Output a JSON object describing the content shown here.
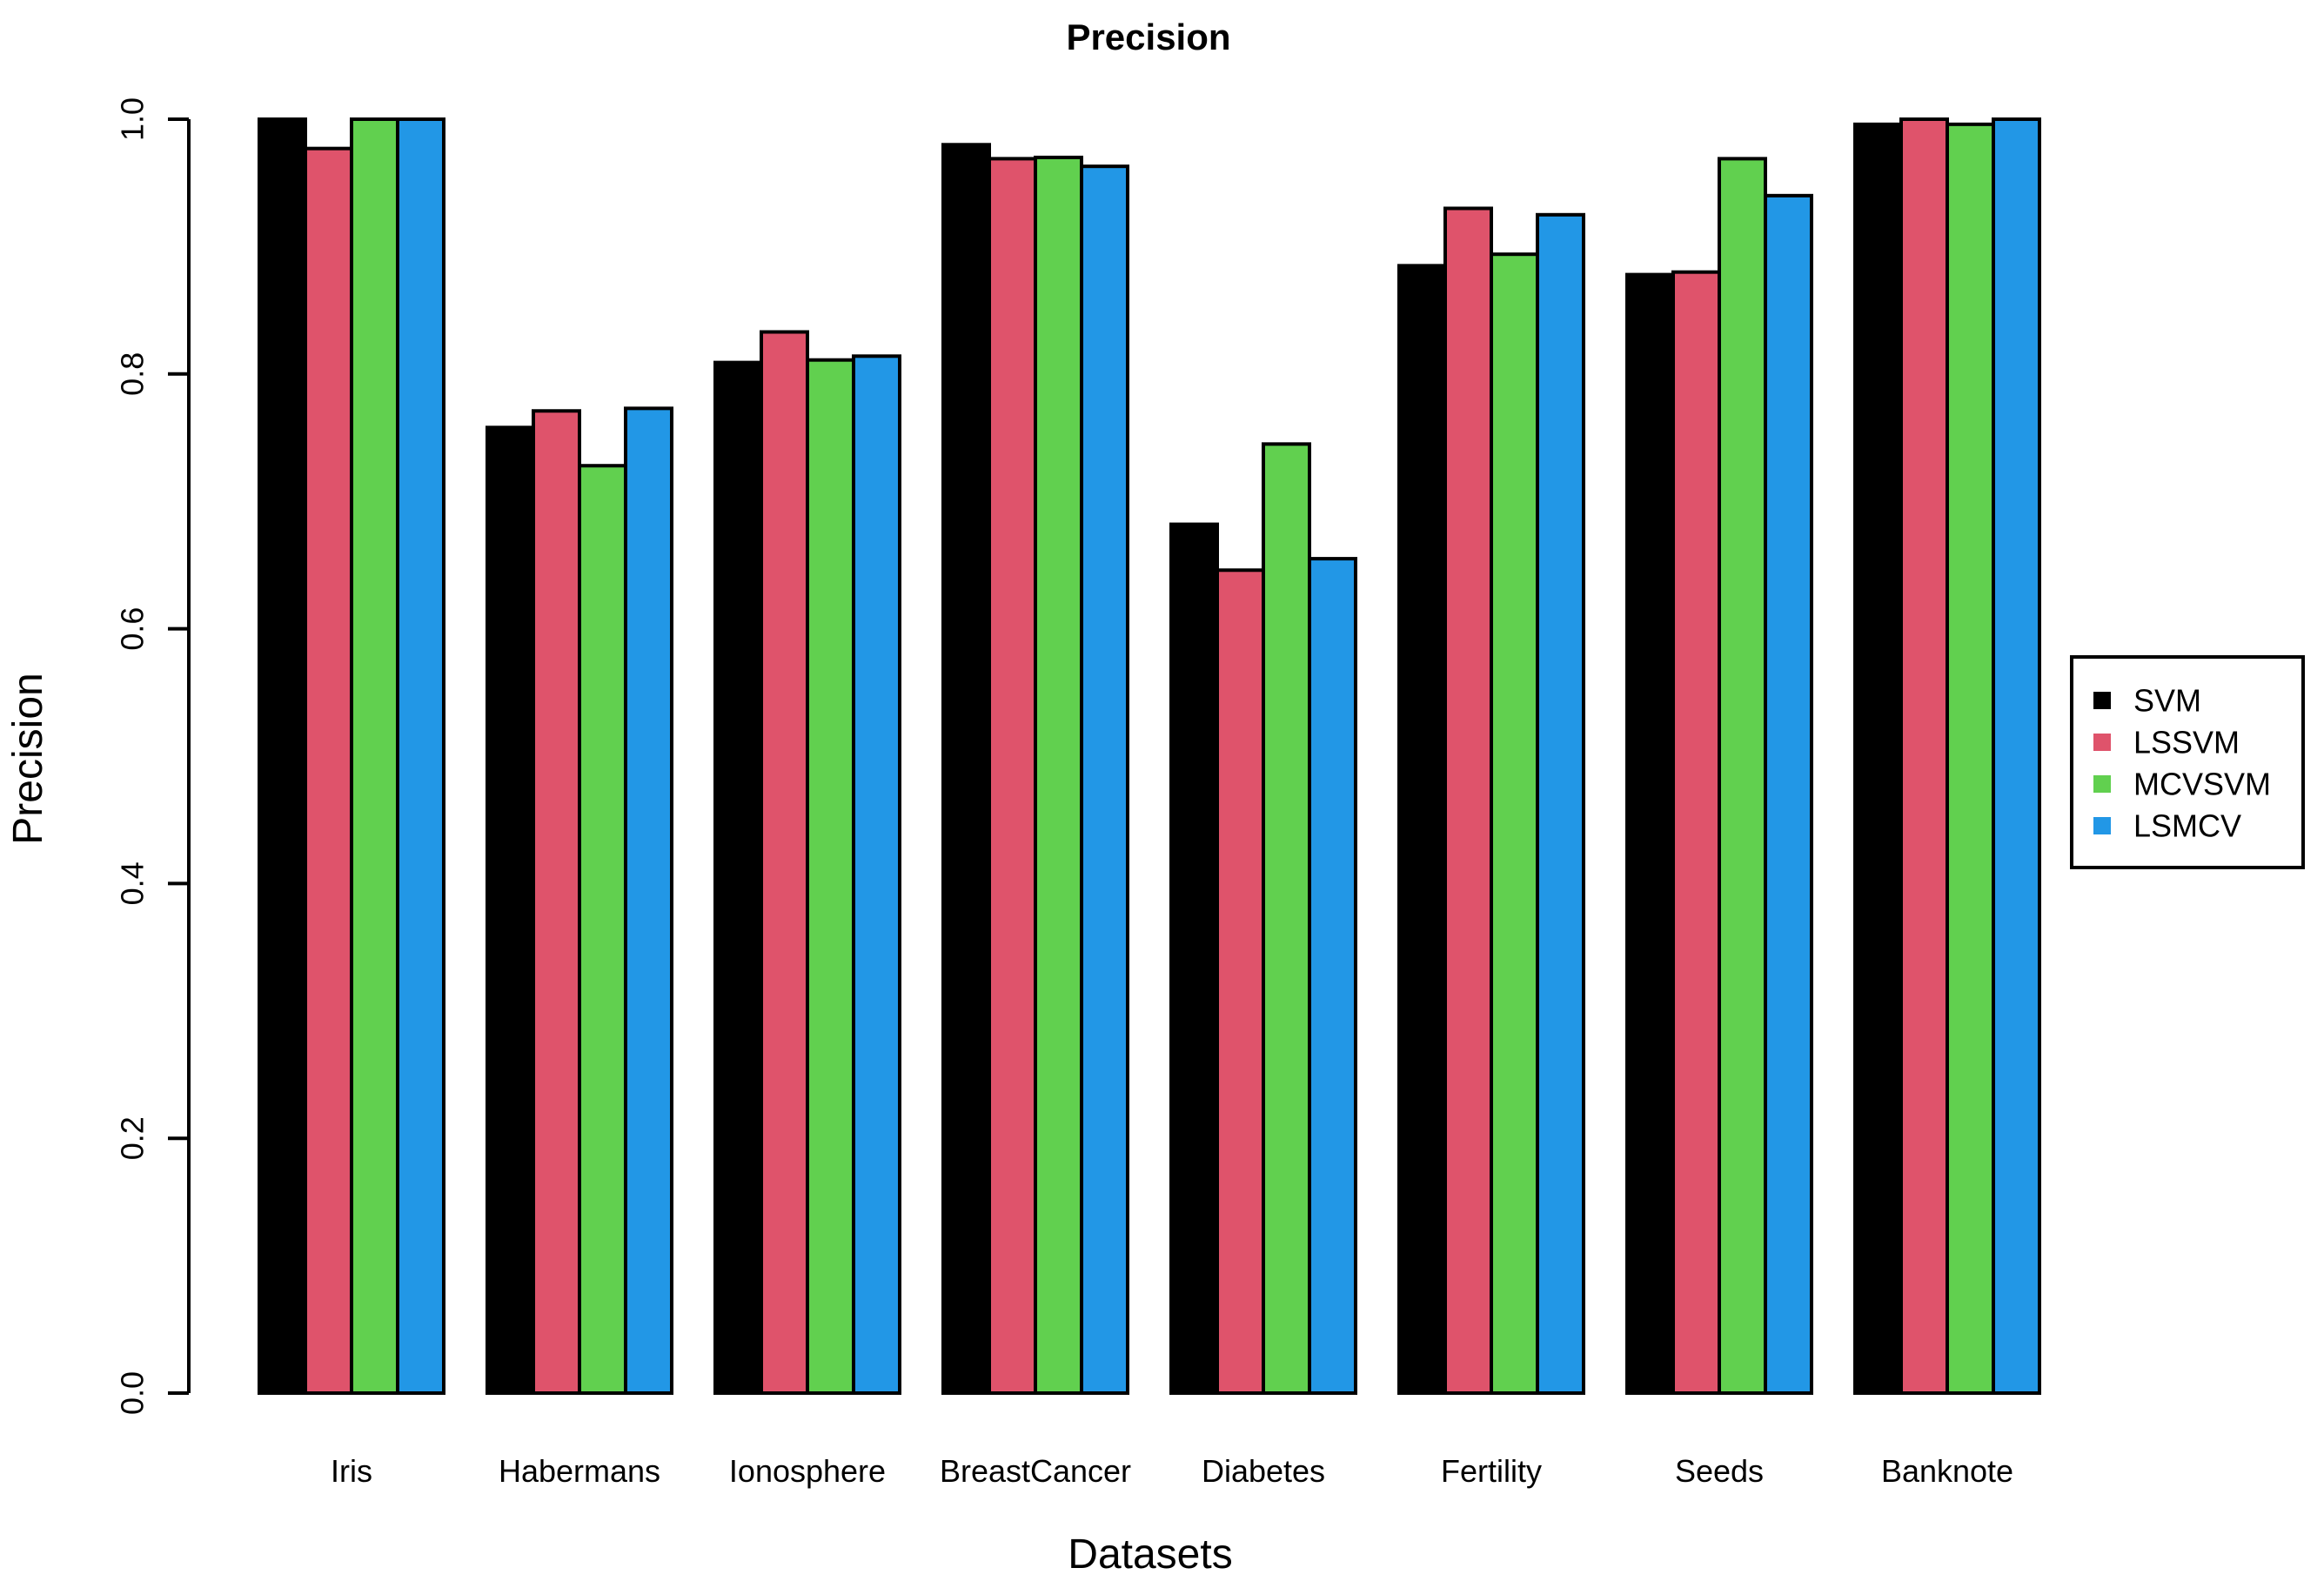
{
  "chart_data": {
    "type": "bar",
    "title": "Precision",
    "xlabel": "Datasets",
    "ylabel": "Precision",
    "ylim": [
      0.0,
      1.0
    ],
    "grid": false,
    "y_ticks": [
      {
        "value": 0.0,
        "label": "0.0"
      },
      {
        "value": 0.2,
        "label": "0.2"
      },
      {
        "value": 0.4,
        "label": "0.4"
      },
      {
        "value": 0.6,
        "label": "0.6"
      },
      {
        "value": 0.8,
        "label": "0.8"
      },
      {
        "value": 1.0,
        "label": "1.0"
      }
    ],
    "categories": [
      "Iris",
      "Habermans",
      "Ionosphere",
      "BreastCancer",
      "Diabetes",
      "Fertility",
      "Seeds",
      "Banknote"
    ],
    "series": [
      {
        "name": "SVM",
        "color": "#000000",
        "values": [
          1.0,
          0.758,
          0.809,
          0.98,
          0.682,
          0.885,
          0.878,
          0.996
        ]
      },
      {
        "name": "LSSVM",
        "color": "#DF536B",
        "values": [
          0.977,
          0.771,
          0.833,
          0.969,
          0.646,
          0.93,
          0.88,
          1.0
        ]
      },
      {
        "name": "MCVSVM",
        "color": "#61D04F",
        "values": [
          1.0,
          0.728,
          0.811,
          0.97,
          0.745,
          0.894,
          0.969,
          0.996
        ]
      },
      {
        "name": "LSMCV",
        "color": "#2297E6",
        "values": [
          1.0,
          0.773,
          0.814,
          0.963,
          0.655,
          0.925,
          0.94,
          1.0
        ]
      }
    ],
    "legend": {
      "position": "right",
      "items": [
        "SVM",
        "LSSVM",
        "MCVSVM",
        "LSMCV"
      ]
    },
    "bar_border_color": "#000000"
  }
}
